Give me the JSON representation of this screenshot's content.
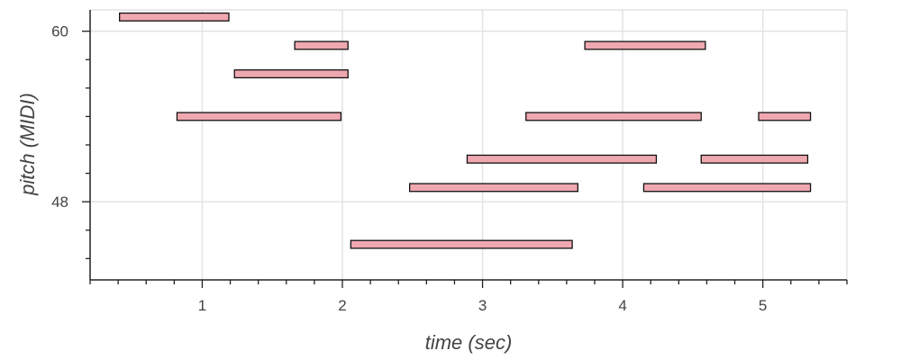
{
  "chart_data": {
    "type": "piano-roll",
    "xlabel": "time (sec)",
    "ylabel": "pitch (MIDI)",
    "xlim": [
      0.2,
      5.6
    ],
    "ylim": [
      42.5,
      61.5
    ],
    "x_major_ticks": [
      1,
      2,
      3,
      4,
      5
    ],
    "x_tick_labels": [
      "1",
      "2",
      "3",
      "4",
      "5"
    ],
    "y_major_ticks": [
      48,
      60
    ],
    "y_tick_labels": [
      "48",
      "60"
    ],
    "grid": true,
    "colors": {
      "note_fill": "#f0a8b0",
      "note_edge": "#111111",
      "grid": "#e3e3e3",
      "axis": "#222222",
      "text": "#444444"
    },
    "notes": [
      {
        "start": 0.41,
        "end": 1.19,
        "pitch": 61
      },
      {
        "start": 1.66,
        "end": 2.04,
        "pitch": 59
      },
      {
        "start": 3.73,
        "end": 4.59,
        "pitch": 59
      },
      {
        "start": 1.23,
        "end": 2.04,
        "pitch": 57
      },
      {
        "start": 0.82,
        "end": 1.99,
        "pitch": 54
      },
      {
        "start": 3.31,
        "end": 4.56,
        "pitch": 54
      },
      {
        "start": 4.97,
        "end": 5.34,
        "pitch": 54
      },
      {
        "start": 2.89,
        "end": 4.24,
        "pitch": 51
      },
      {
        "start": 4.56,
        "end": 5.32,
        "pitch": 51
      },
      {
        "start": 2.48,
        "end": 3.68,
        "pitch": 49
      },
      {
        "start": 4.15,
        "end": 5.34,
        "pitch": 49
      },
      {
        "start": 2.06,
        "end": 3.64,
        "pitch": 45
      }
    ]
  }
}
